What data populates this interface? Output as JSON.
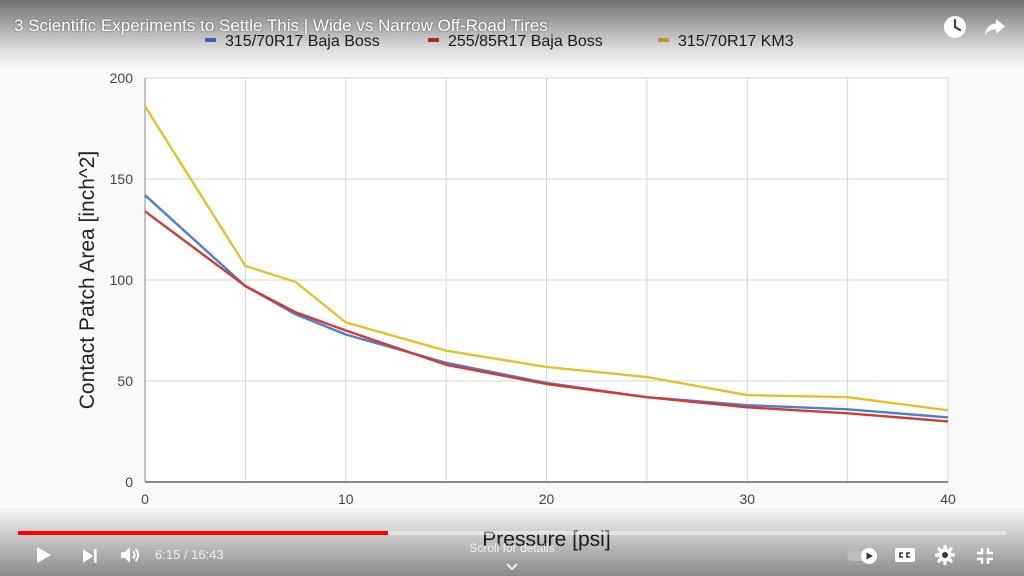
{
  "player": {
    "title": "3 Scientific Experiments to Settle This | Wide vs Narrow Off-Road Tires",
    "time_current": "6:15",
    "time_total": "16:43",
    "time_display": "6:15 / 16:43",
    "scroll_hint": "Scroll for details",
    "progress_played_fraction": 0.374,
    "progress_buffered_fraction": 0.37,
    "accent_color": "#ff0000",
    "icons": {
      "watch_later": "clock-icon",
      "share": "share-icon",
      "play": "play-icon",
      "next": "next-icon",
      "volume": "volume-icon",
      "autoplay": "autoplay-toggle-icon",
      "captions": "cc-icon",
      "settings": "gear-icon",
      "exit_fullscreen": "exit-fullscreen-icon",
      "scroll": "chevron-down-icon"
    }
  },
  "chart_data": {
    "type": "line",
    "title": "",
    "xlabel": "Pressure [psi]",
    "ylabel": "Contact Patch Area [inch^2]",
    "xlim": [
      0,
      40
    ],
    "ylim": [
      0,
      200
    ],
    "x_ticks": [
      0,
      10,
      20,
      30,
      40
    ],
    "y_ticks": [
      0,
      50,
      100,
      150,
      200
    ],
    "grid": true,
    "legend_position": "top",
    "series": [
      {
        "name": "315/70R17 Baja Boss",
        "color": "#4a7fd4",
        "points": [
          [
            0,
            142
          ],
          [
            5,
            97
          ],
          [
            7.5,
            83
          ],
          [
            10,
            73
          ],
          [
            15,
            59
          ],
          [
            20,
            49
          ],
          [
            25,
            42
          ],
          [
            30,
            38
          ],
          [
            35,
            36
          ],
          [
            40,
            32
          ]
        ]
      },
      {
        "name": "255/85R17 Baja Boss",
        "color": "#d23a30",
        "points": [
          [
            0,
            134
          ],
          [
            5,
            97
          ],
          [
            7.5,
            84
          ],
          [
            10,
            75
          ],
          [
            15,
            58
          ],
          [
            20,
            48.5
          ],
          [
            25,
            42
          ],
          [
            30,
            37
          ],
          [
            35,
            34
          ],
          [
            40,
            30
          ]
        ]
      },
      {
        "name": "315/70R17 KM3",
        "color": "#e6c02a",
        "points": [
          [
            0,
            186
          ],
          [
            5,
            107
          ],
          [
            7.5,
            99
          ],
          [
            10,
            79
          ],
          [
            15,
            65
          ],
          [
            20,
            57
          ],
          [
            25,
            52
          ],
          [
            30,
            43
          ],
          [
            35,
            42
          ],
          [
            40,
            35.5
          ]
        ]
      }
    ]
  }
}
